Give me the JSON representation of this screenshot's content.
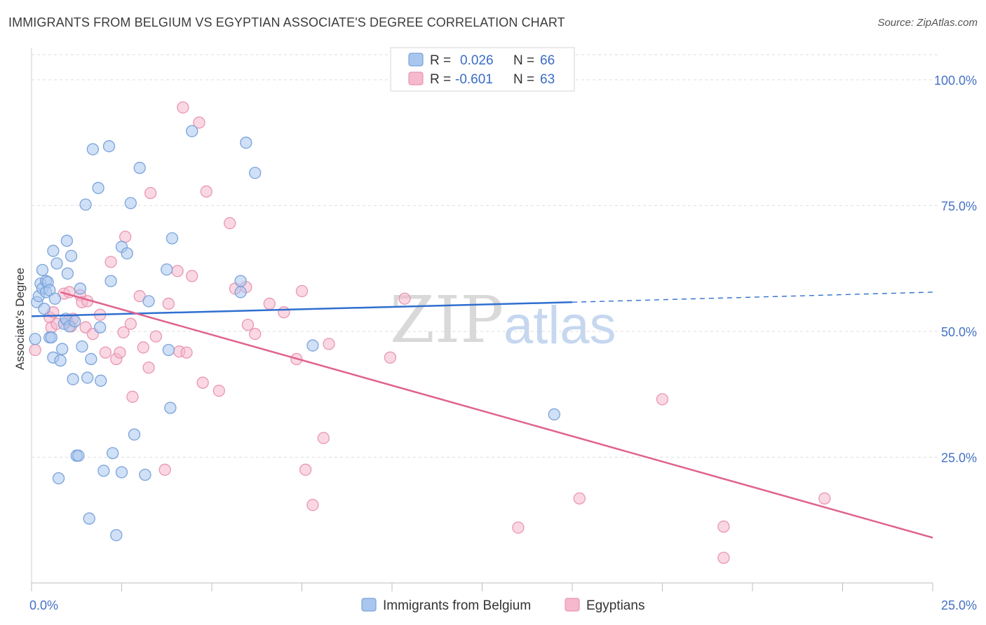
{
  "title": "IMMIGRANTS FROM BELGIUM VS EGYPTIAN ASSOCIATE'S DEGREE CORRELATION CHART",
  "source": "Source: ZipAtlas.com",
  "watermark": {
    "zip": "ZIP",
    "atlas": "atlas"
  },
  "colors": {
    "belgium_fill": "#a9c6ee",
    "belgium_stroke": "#7aa3db",
    "belgium_line": "#2f6fcf",
    "egypt_fill": "#f5b8cc",
    "egypt_stroke": "#e996b2",
    "egypt_line": "#e0628f",
    "tick": "#4472c4",
    "grid": "#dddddd"
  },
  "legend": {
    "rows": [
      {
        "r_label": "R =",
        "r_value": "0.026",
        "n_label": "N =",
        "n_value": "66"
      },
      {
        "r_label": "R =",
        "r_value": "-0.601",
        "n_label": "N =",
        "n_value": "63"
      }
    ]
  },
  "bottom_legend": [
    "Immigrants from Belgium",
    "Egyptians"
  ],
  "chart_data": {
    "type": "scatter",
    "title": "IMMIGRANTS FROM BELGIUM VS EGYPTIAN ASSOCIATE'S DEGREE CORRELATION CHART",
    "xlabel": "",
    "ylabel": "Associate's Degree",
    "xlim": [
      0,
      25
    ],
    "ylim": [
      0,
      105
    ],
    "x_tick_labels": [
      "0.0%",
      "25.0%"
    ],
    "y_ticks": [
      25,
      50,
      75,
      100
    ],
    "y_tick_labels": [
      "25.0%",
      "50.0%",
      "75.0%",
      "100.0%"
    ],
    "grid": true,
    "legend_position": "top-center",
    "series": [
      {
        "name": "Immigrants from Belgium",
        "trend": {
          "x": [
            0,
            15
          ],
          "y": [
            53.0,
            55.8
          ],
          "dashed_to_x": 25,
          "dashed_to_y": 57.8
        },
        "points": [
          [
            0.1,
            48.5
          ],
          [
            0.15,
            55.8
          ],
          [
            0.2,
            57
          ],
          [
            0.25,
            59.5
          ],
          [
            0.3,
            62.2
          ],
          [
            0.3,
            58.5
          ],
          [
            0.35,
            54.5
          ],
          [
            0.4,
            60.0
          ],
          [
            0.4,
            57.8
          ],
          [
            0.45,
            59.8
          ],
          [
            0.5,
            58.2
          ],
          [
            0.5,
            48.8
          ],
          [
            0.55,
            48.8
          ],
          [
            0.6,
            66.0
          ],
          [
            0.6,
            44.8
          ],
          [
            0.65,
            56.5
          ],
          [
            0.7,
            63.5
          ],
          [
            0.75,
            20.8
          ],
          [
            0.8,
            44.2
          ],
          [
            0.85,
            46.5
          ],
          [
            0.9,
            51.5
          ],
          [
            0.95,
            52.5
          ],
          [
            0.98,
            68.0
          ],
          [
            1.0,
            61.5
          ],
          [
            1.05,
            51.0
          ],
          [
            1.1,
            65.0
          ],
          [
            1.15,
            40.5
          ],
          [
            1.2,
            52.0
          ],
          [
            1.25,
            25.3
          ],
          [
            1.3,
            25.3
          ],
          [
            1.35,
            58.5
          ],
          [
            1.4,
            47.0
          ],
          [
            1.5,
            75.2
          ],
          [
            1.55,
            40.8
          ],
          [
            1.6,
            12.8
          ],
          [
            1.65,
            44.5
          ],
          [
            1.7,
            86.2
          ],
          [
            1.85,
            78.5
          ],
          [
            1.9,
            50.8
          ],
          [
            1.92,
            40.2
          ],
          [
            2.0,
            22.3
          ],
          [
            2.15,
            86.8
          ],
          [
            2.2,
            60.0
          ],
          [
            2.25,
            25.8
          ],
          [
            2.35,
            9.5
          ],
          [
            2.5,
            22.0
          ],
          [
            2.5,
            66.8
          ],
          [
            2.65,
            65.5
          ],
          [
            2.75,
            75.5
          ],
          [
            2.85,
            29.5
          ],
          [
            3.0,
            82.5
          ],
          [
            3.15,
            21.5
          ],
          [
            3.25,
            56.0
          ],
          [
            3.75,
            62.3
          ],
          [
            3.8,
            46.3
          ],
          [
            3.85,
            34.8
          ],
          [
            3.9,
            68.5
          ],
          [
            4.45,
            89.8
          ],
          [
            5.8,
            60.0
          ],
          [
            5.8,
            57.8
          ],
          [
            5.95,
            87.5
          ],
          [
            6.2,
            81.5
          ],
          [
            7.8,
            47.2
          ],
          [
            14.5,
            33.5
          ]
        ]
      },
      {
        "name": "Egyptians",
        "trend": {
          "x": [
            0.8,
            25
          ],
          "y": [
            57.8,
            9.0
          ]
        },
        "points": [
          [
            0.1,
            46.3
          ],
          [
            0.5,
            52.8
          ],
          [
            0.55,
            50.8
          ],
          [
            0.6,
            53.8
          ],
          [
            0.7,
            51.5
          ],
          [
            0.9,
            57.5
          ],
          [
            1.0,
            52.0
          ],
          [
            1.05,
            57.8
          ],
          [
            1.1,
            51.0
          ],
          [
            1.15,
            52.5
          ],
          [
            1.35,
            57.2
          ],
          [
            1.4,
            55.8
          ],
          [
            1.5,
            50.8
          ],
          [
            1.55,
            56.0
          ],
          [
            1.7,
            49.5
          ],
          [
            1.9,
            53.3
          ],
          [
            2.05,
            45.8
          ],
          [
            2.2,
            63.8
          ],
          [
            2.35,
            44.5
          ],
          [
            2.45,
            45.8
          ],
          [
            2.55,
            49.8
          ],
          [
            2.6,
            68.8
          ],
          [
            2.75,
            51.5
          ],
          [
            2.8,
            37.0
          ],
          [
            3.0,
            57.0
          ],
          [
            3.1,
            46.8
          ],
          [
            3.25,
            42.8
          ],
          [
            3.3,
            77.5
          ],
          [
            3.45,
            49.0
          ],
          [
            3.7,
            22.5
          ],
          [
            3.8,
            55.5
          ],
          [
            4.05,
            62.0
          ],
          [
            4.1,
            46.0
          ],
          [
            4.2,
            94.5
          ],
          [
            4.3,
            45.8
          ],
          [
            4.45,
            61.0
          ],
          [
            4.65,
            91.5
          ],
          [
            4.75,
            39.8
          ],
          [
            4.85,
            77.8
          ],
          [
            5.2,
            38.2
          ],
          [
            5.5,
            71.5
          ],
          [
            5.65,
            58.5
          ],
          [
            5.95,
            58.8
          ],
          [
            6.0,
            51.3
          ],
          [
            6.2,
            49.5
          ],
          [
            6.6,
            55.5
          ],
          [
            7.0,
            53.8
          ],
          [
            7.35,
            44.5
          ],
          [
            7.5,
            58.0
          ],
          [
            7.6,
            22.5
          ],
          [
            7.8,
            15.5
          ],
          [
            8.1,
            28.8
          ],
          [
            8.25,
            47.5
          ],
          [
            9.95,
            44.8
          ],
          [
            10.35,
            56.5
          ],
          [
            13.5,
            11.0
          ],
          [
            15.2,
            16.8
          ],
          [
            17.5,
            36.5
          ],
          [
            19.2,
            11.2
          ],
          [
            19.2,
            5.0
          ],
          [
            22.0,
            16.8
          ]
        ]
      }
    ]
  }
}
